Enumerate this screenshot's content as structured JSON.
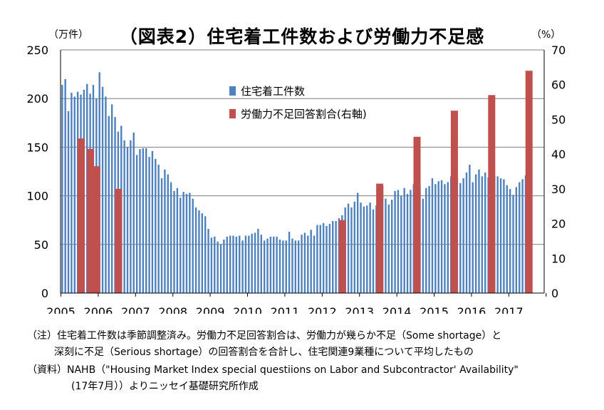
{
  "header": {
    "title": "（図表2）住宅着工件数および労働力不足感",
    "left_unit": "（万件）",
    "right_unit": "（%）"
  },
  "colors": {
    "bar_blue": "#4f81bd",
    "bar_red": "#c0504d",
    "grid": "#7f7f7f"
  },
  "chart_data": {
    "type": "bar",
    "title": "（図表2）住宅着工件数および労働力不足感",
    "legend_position": "inside-top-center",
    "grid": true,
    "y_left": {
      "label": "（万件）",
      "range": [
        0,
        250
      ],
      "ticks": [
        "0",
        "50",
        "100",
        "150",
        "200",
        "250"
      ]
    },
    "y_right": {
      "label": "（%）",
      "range": [
        0,
        70
      ],
      "ticks": [
        "0",
        "10",
        "20",
        "30",
        "40",
        "50",
        "60",
        "70"
      ]
    },
    "x_ticks": [
      "2005",
      "2006",
      "2007",
      "2008",
      "2009",
      "2010",
      "2011",
      "2012",
      "2013",
      "2014",
      "2015",
      "2016",
      "2017"
    ],
    "series": [
      {
        "name": "住宅着工件数",
        "axis": "left",
        "start": "2005-01",
        "frequency": "monthly",
        "values": [
          214,
          220,
          187,
          206,
          202,
          207,
          204,
          209,
          215,
          205,
          214,
          200,
          227,
          212,
          202,
          182,
          194,
          181,
          166,
          172,
          157,
          150,
          157,
          165,
          142,
          148,
          149,
          149,
          140,
          146,
          138,
          132,
          118,
          127,
          122,
          114,
          105,
          108,
          98,
          104,
          102,
          103,
          97,
          88,
          85,
          82,
          79,
          66,
          57,
          58,
          53,
          50,
          55,
          58,
          59,
          59,
          58,
          59,
          54,
          59,
          59,
          61,
          62,
          66,
          60,
          54,
          56,
          58,
          58,
          58,
          55,
          54,
          54,
          63,
          56,
          54,
          54,
          60,
          62,
          59,
          65,
          59,
          70,
          70,
          72,
          69,
          71,
          74,
          74,
          77,
          80,
          88,
          92,
          88,
          94,
          103,
          93,
          89,
          90,
          93,
          86,
          90,
          104,
          110,
          97,
          91,
          96,
          105,
          106,
          100,
          108,
          102,
          106,
          112,
          106,
          111,
          97,
          108,
          110,
          118,
          112,
          115,
          116,
          112,
          114,
          120,
          118,
          119,
          113,
          118,
          124,
          132,
          114,
          122,
          127,
          120,
          124,
          119,
          113,
          121,
          120,
          118,
          117,
          111,
          107,
          101,
          109,
          114,
          117,
          121,
          119
        ]
      },
      {
        "name": "労働力不足回答割合(右軸)",
        "axis": "right",
        "points": [
          {
            "x": "2005-07",
            "value": 44.5
          },
          {
            "x": "2005-10",
            "value": 41.5
          },
          {
            "x": "2005-12",
            "value": 36.5
          },
          {
            "x": "2006-07",
            "value": 30
          },
          {
            "x": "2012-07",
            "value": 21
          },
          {
            "x": "2013-07",
            "value": 31.5
          },
          {
            "x": "2014-07",
            "value": 45
          },
          {
            "x": "2015-07",
            "value": 52.5
          },
          {
            "x": "2016-07",
            "value": 57
          },
          {
            "x": "2017-07",
            "value": 64
          }
        ]
      }
    ]
  },
  "notes": {
    "line1": "（注）住宅着工件数は季節調整済み。労働力不足回答割合は、労働力が幾らか不足（Some shortage）と",
    "line2": "深刻に不足（Serious shortage）の回答割合を合計し、住宅関連9業種について平均したもの",
    "line3": "（資料）NAHB（\"Housing Market Index special questiions on Labor and Subcontractor' Availability\"",
    "line4": "(17年7月））よりニッセイ基礎研究所作成"
  }
}
